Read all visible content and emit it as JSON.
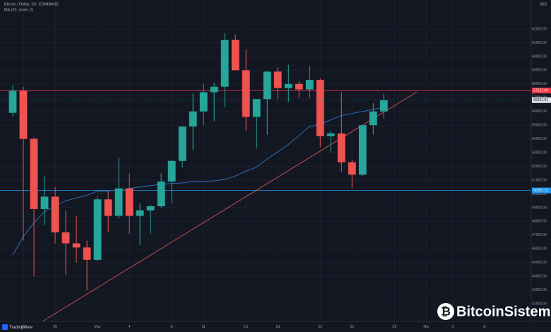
{
  "chart_data": {
    "type": "candlestick",
    "title": "Bitcoin / Dollar, 1G, COINBASE",
    "currency": "USD",
    "x": [
      0,
      1,
      2,
      3,
      4,
      5,
      6,
      7,
      8,
      9,
      10,
      11,
      12,
      13,
      14,
      15,
      16,
      17,
      18,
      19,
      20,
      21,
      22,
      23,
      24,
      25,
      26,
      27,
      28,
      29,
      30,
      31,
      32,
      33,
      34,
      35
    ],
    "open": [
      55900,
      57500,
      54000,
      48900,
      49800,
      47200,
      46400,
      46100,
      45200,
      49600,
      48400,
      50400,
      48400,
      48800,
      49100,
      50900,
      52400,
      54900,
      56000,
      57400,
      57800,
      61200,
      59000,
      55600,
      56900,
      58900,
      57700,
      58000,
      57600,
      58300,
      54200,
      54400,
      52300,
      51400,
      55000,
      56000
    ],
    "high": [
      57900,
      57800,
      54100,
      51300,
      50500,
      48800,
      48400,
      46600,
      49800,
      50200,
      52600,
      51500,
      49300,
      49200,
      51500,
      52500,
      54900,
      57300,
      58000,
      58100,
      61700,
      61600,
      60500,
      56900,
      58900,
      59200,
      59400,
      58200,
      59300,
      58400,
      54600,
      57400,
      52500,
      55000,
      56600,
      57300
    ],
    "low": [
      55600,
      46600,
      44000,
      47700,
      46400,
      44100,
      45000,
      43000,
      45100,
      47200,
      48200,
      47100,
      46300,
      47100,
      49000,
      49300,
      51900,
      53200,
      55000,
      55300,
      56300,
      59000,
      54600,
      53300,
      54300,
      56900,
      56700,
      57000,
      57000,
      53400,
      53000,
      51600,
      50400,
      51300,
      54300,
      55500
    ],
    "close": [
      57500,
      54000,
      48900,
      49800,
      47200,
      46400,
      46100,
      45200,
      49600,
      48400,
      50400,
      48400,
      48800,
      49100,
      50900,
      52400,
      54900,
      56000,
      57400,
      57800,
      61200,
      59000,
      55600,
      56900,
      58900,
      57700,
      58000,
      57600,
      58300,
      54200,
      54400,
      52300,
      51400,
      55000,
      56000,
      56821.91
    ],
    "up_color": "#26a69a",
    "down_color": "#ef5350",
    "ma": {
      "name": "MA (20, close, 0)",
      "color": "#2f6fb3",
      "values": [
        45550,
        46900,
        47900,
        48700,
        49150,
        49500,
        49700,
        49900,
        50200,
        50200,
        50300,
        50400,
        50500,
        50600,
        50700,
        50750,
        50800,
        50900,
        50900,
        50950,
        51050,
        51300,
        51650,
        51950,
        52550,
        53050,
        53600,
        54250,
        54900,
        55050,
        55400,
        55700,
        55850,
        56000,
        56150,
        56300
      ]
    },
    "levels": [
      {
        "value": 57517.63,
        "color": "#f23645"
      },
      {
        "value": 50251.12,
        "color": "#2196f3"
      }
    ],
    "trendline": {
      "color": "#c0504d",
      "x": [
        2.8,
        38.1
      ],
      "y": [
        40720,
        57420
      ]
    },
    "xlim": [
      -1.2,
      48.9
    ],
    "ylim": [
      40720,
      64110
    ],
    "grid": true,
    "xticks": [
      {
        "value": 1,
        "label": "22"
      },
      {
        "value": 4,
        "label": "25"
      },
      {
        "value": 8,
        "label": "Mar"
      },
      {
        "value": 11,
        "label": "4"
      },
      {
        "value": 15,
        "label": "8"
      },
      {
        "value": 18,
        "label": "11"
      },
      {
        "value": 22,
        "label": "15"
      },
      {
        "value": 25,
        "label": "18"
      },
      {
        "value": 29,
        "label": "22"
      },
      {
        "value": 32,
        "label": "25"
      },
      {
        "value": 36,
        "label": "29"
      },
      {
        "value": 39,
        "label": "Nis"
      },
      {
        "value": 41.5,
        "label": "5"
      },
      {
        "value": 44.5,
        "label": "8"
      }
    ],
    "yticks": [
      {
        "value": 42000,
        "label": "42000.00"
      },
      {
        "value": 43000,
        "label": "43000.00"
      },
      {
        "value": 44000,
        "label": "44000.00"
      },
      {
        "value": 45000,
        "label": "45000.00"
      },
      {
        "value": 46000,
        "label": "46000.00"
      },
      {
        "value": 47000,
        "label": "47000.00"
      },
      {
        "value": 48000,
        "label": "48000.00"
      },
      {
        "value": 49000,
        "label": "49000.00"
      },
      {
        "value": 50000,
        "label": "50000.00"
      },
      {
        "value": 51000,
        "label": "51000.00"
      },
      {
        "value": 52000,
        "label": "52000.00"
      },
      {
        "value": 53000,
        "label": "53000.00"
      },
      {
        "value": 54000,
        "label": "54000.00"
      },
      {
        "value": 55000,
        "label": "55000.00"
      },
      {
        "value": 56000,
        "label": "56000.00"
      },
      {
        "value": 57000,
        "label": "57000.00"
      },
      {
        "value": 58000,
        "label": "58000.00"
      },
      {
        "value": 59000,
        "label": "59000.00"
      },
      {
        "value": 60000,
        "label": "60000.00"
      },
      {
        "value": 61000,
        "label": "61000.00"
      },
      {
        "value": 62000,
        "label": "62000.00"
      }
    ]
  },
  "branding": {
    "logo": "TradingView",
    "watermark": "BitcoinSistemi"
  }
}
